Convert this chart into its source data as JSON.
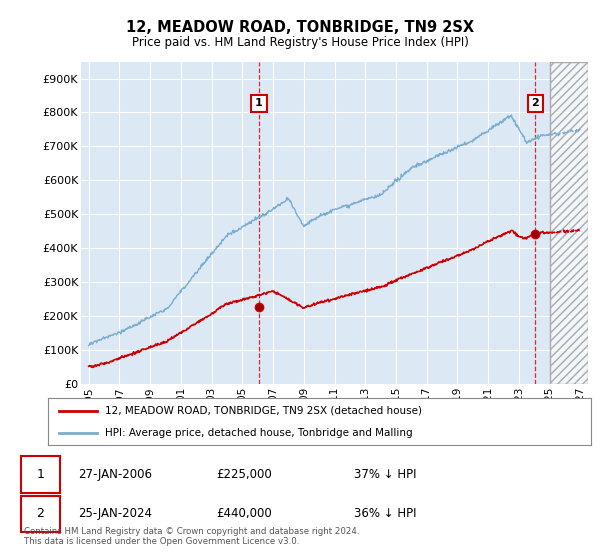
{
  "title": "12, MEADOW ROAD, TONBRIDGE, TN9 2SX",
  "subtitle": "Price paid vs. HM Land Registry's House Price Index (HPI)",
  "ylim": [
    0,
    950000
  ],
  "yticks": [
    0,
    100000,
    200000,
    300000,
    400000,
    500000,
    600000,
    700000,
    800000,
    900000
  ],
  "ytick_labels": [
    "£0",
    "£100K",
    "£200K",
    "£300K",
    "£400K",
    "£500K",
    "£600K",
    "£700K",
    "£800K",
    "£900K"
  ],
  "background_color": "#ffffff",
  "plot_bg_color": "#dce9f5",
  "plot_bg_color2": "#e8e8e8",
  "grid_color": "#ffffff",
  "line1_color": "#cc0000",
  "line2_color": "#7aadcf",
  "vline_color": "#cc0000",
  "sale1_year": 2006.07,
  "sale1_price": 225000,
  "sale1_label": "1",
  "sale2_year": 2024.07,
  "sale2_price": 440000,
  "sale2_label": "2",
  "legend_line1": "12, MEADOW ROAD, TONBRIDGE, TN9 2SX (detached house)",
  "legend_line2": "HPI: Average price, detached house, Tonbridge and Malling",
  "table_row1": [
    "1",
    "27-JAN-2006",
    "£225,000",
    "37% ↓ HPI"
  ],
  "table_row2": [
    "2",
    "25-JAN-2024",
    "£440,000",
    "36% ↓ HPI"
  ],
  "footnote": "Contains HM Land Registry data © Crown copyright and database right 2024.\nThis data is licensed under the Open Government Licence v3.0.",
  "xmin": 1994.5,
  "xmax": 2027.5,
  "hatch_start": 2025.0,
  "xticks": [
    1995,
    1997,
    1999,
    2001,
    2003,
    2005,
    2007,
    2009,
    2011,
    2013,
    2015,
    2017,
    2019,
    2021,
    2023,
    2025,
    2027
  ]
}
